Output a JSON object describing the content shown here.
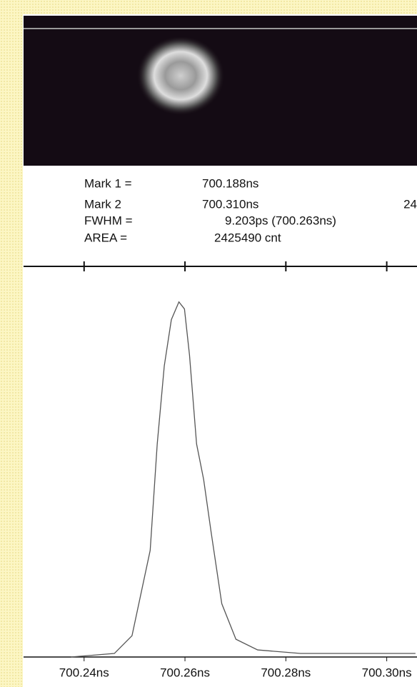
{
  "readout": {
    "rows": [
      {
        "label": "Mark 1 =",
        "value": "700.188ns"
      },
      {
        "label": "Mark 2",
        "value": "700.310ns",
        "extra": "24"
      },
      {
        "label": "FWHM =",
        "value": "9.203ps (700.263ns)"
      },
      {
        "label": "AREA  =",
        "value": "2425490 cnt"
      }
    ]
  },
  "chart_data": {
    "type": "line",
    "x": [
      700.2374,
      700.246,
      700.2495,
      700.2531,
      700.2545,
      700.2559,
      700.2573,
      700.2588,
      700.2599,
      700.2609,
      700.2623,
      700.2637,
      700.2652,
      700.2673,
      700.2701,
      700.2744,
      700.2829,
      700.2943,
      700.3057
    ],
    "series": [
      {
        "color": "#555555",
        "values": [
          0,
          0.01,
          0.06,
          0.3,
          0.6,
          0.82,
          0.95,
          1.0,
          0.98,
          0.85,
          0.6,
          0.5,
          0.35,
          0.15,
          0.05,
          0.02,
          0.01,
          0.01,
          0.01
        ]
      }
    ],
    "xlim": [
      700.228,
      700.306
    ],
    "ylim": [
      0,
      1.1
    ],
    "xticks": [
      {
        "value": 700.24,
        "label": "700.24ns"
      },
      {
        "value": 700.26,
        "label": "700.26ns"
      },
      {
        "value": 700.28,
        "label": "700.28ns"
      },
      {
        "value": 700.3,
        "label": "700.30ns"
      }
    ]
  }
}
